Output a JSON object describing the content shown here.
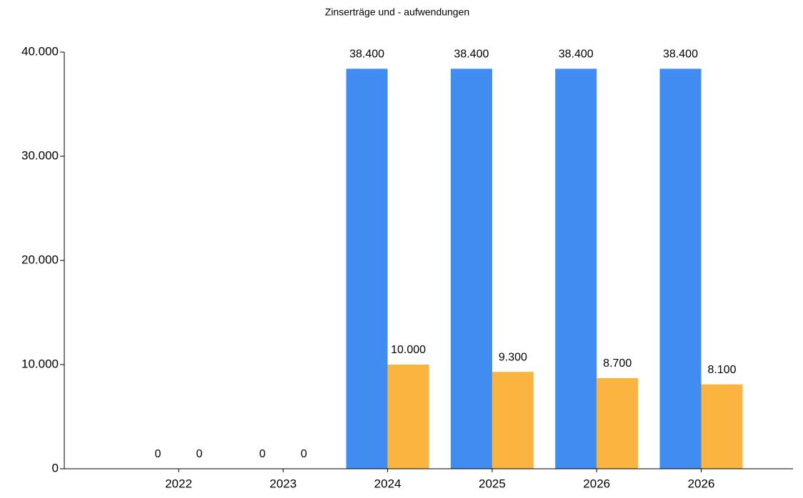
{
  "chart_data": {
    "type": "bar",
    "title": "Zinserträge und - aufwendungen",
    "categories": [
      "2022",
      "2023",
      "2024",
      "2025",
      "2026",
      "2026"
    ],
    "series": [
      {
        "color": "#418cf0",
        "values": [
          0,
          0,
          38400,
          38400,
          38400,
          38400
        ],
        "value_labels": [
          "0",
          "0",
          "38.400",
          "38.400",
          "38.400",
          "38.400"
        ]
      },
      {
        "color": "#fcb441",
        "values": [
          0,
          0,
          10000,
          9300,
          8700,
          8100
        ],
        "value_labels": [
          "0",
          "0",
          "10.000",
          "9.300",
          "8.700",
          "8.100"
        ]
      }
    ],
    "ylim": [
      0,
      40000
    ],
    "yticks": [
      0,
      {
        "value": 10000,
        "label": "10.000"
      },
      {
        "value": 20000,
        "label": "20.000"
      },
      {
        "value": 30000,
        "label": "30.000"
      },
      {
        "value": 40000,
        "label": "40.000"
      }
    ]
  }
}
